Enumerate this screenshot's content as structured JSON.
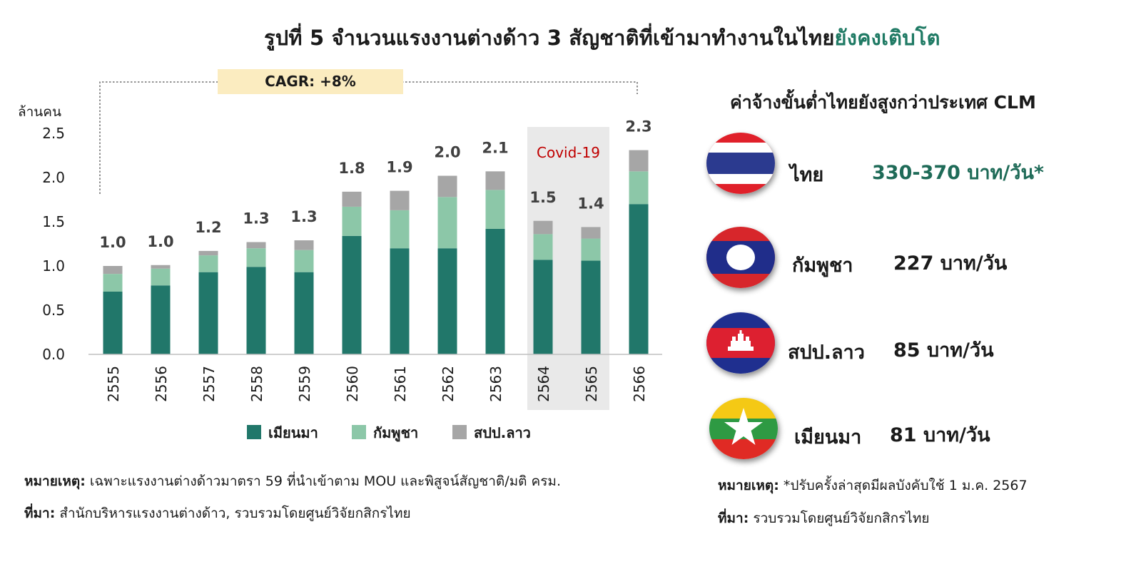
{
  "title": {
    "main": "รูปที่ 5 จำนวนแรงงานต่างด้าว 3 สัญชาติที่เข้ามาทำงานในไทย",
    "highlight": "ยังคงเติบโต"
  },
  "colors": {
    "myanmar": "#21776a",
    "cambodia": "#8cc7a8",
    "laos": "#a6a6a6",
    "cagr_box": "#fbecc0",
    "covid_shade": "#e9e9e9",
    "covid_text": "#c00000",
    "highlight": "#1f7a64"
  },
  "chart_data": {
    "type": "bar",
    "stacked": true,
    "ylabel": "ล้านคน",
    "ylim": [
      0,
      2.5
    ],
    "yticks": [
      "0.0",
      "0.5",
      "1.0",
      "1.5",
      "2.0",
      "2.5"
    ],
    "categories": [
      "2555",
      "2556",
      "2557",
      "2558",
      "2559",
      "2560",
      "2561",
      "2562",
      "2563",
      "2564",
      "2565",
      "2566"
    ],
    "series": [
      {
        "name": "เมียนมา",
        "values": [
          0.71,
          0.78,
          0.93,
          0.99,
          0.93,
          1.34,
          1.2,
          1.2,
          1.42,
          1.07,
          1.06,
          1.7
        ]
      },
      {
        "name": "กัมพูชา",
        "values": [
          0.2,
          0.19,
          0.19,
          0.21,
          0.25,
          0.33,
          0.43,
          0.58,
          0.44,
          0.29,
          0.25,
          0.37
        ]
      },
      {
        "name": "สปป.ลาว",
        "values": [
          0.09,
          0.04,
          0.05,
          0.07,
          0.11,
          0.17,
          0.22,
          0.24,
          0.21,
          0.15,
          0.13,
          0.24
        ]
      }
    ],
    "totals": [
      "1.0",
      "1.0",
      "1.2",
      "1.3",
      "1.3",
      "1.8",
      "1.9",
      "2.0",
      "2.1",
      "1.5",
      "1.4",
      "2.3"
    ],
    "cagr_label": "CAGR: +8%",
    "covid_label": "Covid-19",
    "covid_categories": [
      "2564",
      "2565"
    ],
    "legend_position": "bottom"
  },
  "notes_left": {
    "note_label": "หมายเหตุ:",
    "note_text": " เฉพาะแรงงานต่างด้าวมาตรา 59 ที่นำเข้าตาม MOU และพิสูจน์สัญชาติ/มติ ครม.",
    "source_label": "ที่มา:",
    "source_text": " สำนักบริหารแรงงานต่างด้าว, รวบรวมโดยศูนย์วิจัยกสิกรไทย"
  },
  "wages": {
    "title": "ค่าจ้างขั้นต่ำไทยยังสูงกว่าประเทศ CLM",
    "rows": [
      {
        "flag": "thailand-flag",
        "country": "ไทย",
        "wage": "330-370 บาท/วัน*"
      },
      {
        "flag": "laos-flag",
        "country": "กัมพูชา",
        "wage": "227 บาท/วัน"
      },
      {
        "flag": "cambodia-flag",
        "country": "สปป.ลาว",
        "wage": "85 บาท/วัน"
      },
      {
        "flag": "myanmar-flag",
        "country": "เมียนมา",
        "wage": "81 บาท/วัน"
      }
    ]
  },
  "notes_right": {
    "note_label": "หมายเหตุ:",
    "note_text": " *ปรับครั้งล่าสุดมีผลบังคับใช้ 1 ม.ค. 2567",
    "source_label": "ที่มา:",
    "source_text": " รวบรวมโดยศูนย์วิจัยกสิกรไทย"
  }
}
